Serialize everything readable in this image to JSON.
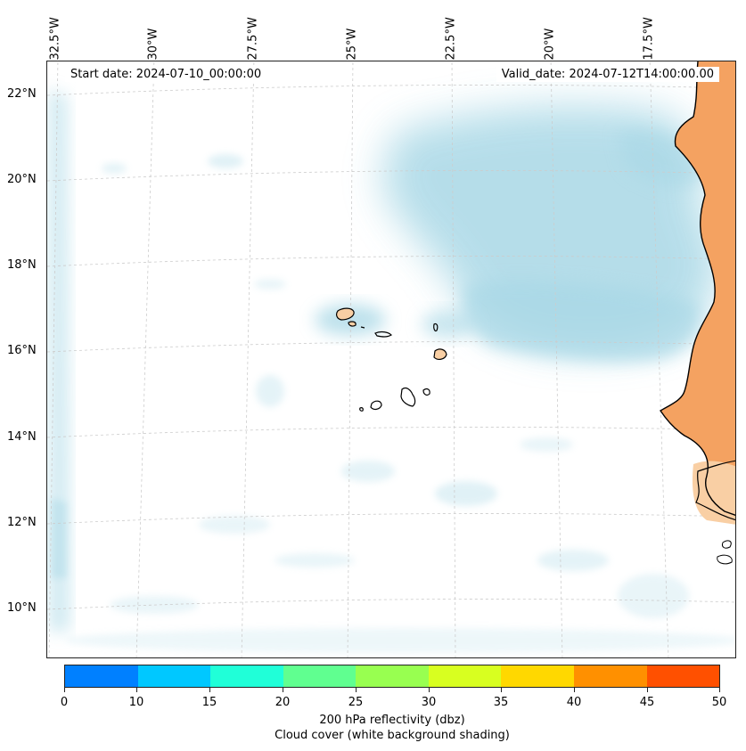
{
  "map": {
    "start_label": "Start date: 2024-07-10_00:00:00",
    "valid_label": "Valid_date: 2024-07-12T14:00:00.00",
    "lon_labels": [
      "32.5°W",
      "30°W",
      "27.5°W",
      "25°W",
      "22.5°W",
      "20°W",
      "17.5°W"
    ],
    "lat_labels": [
      "22°N",
      "20°N",
      "18°N",
      "16°N",
      "14°N",
      "12°N",
      "10°N"
    ],
    "colors": {
      "cloud": "#a9d8e6",
      "land_reflectivity": "#f4a261",
      "land_light": "#f9cfa4",
      "coastline": "#000000",
      "grid": "#cccccc"
    }
  },
  "colorbar": {
    "ticks": [
      "0",
      "10",
      "15",
      "20",
      "25",
      "30",
      "35",
      "40",
      "45",
      "50"
    ],
    "colors": [
      "#0080ff",
      "#00c8ff",
      "#20ffd8",
      "#60ff90",
      "#98ff50",
      "#d8ff20",
      "#ffd800",
      "#ff9000",
      "#ff5000"
    ],
    "label": "200 hPa reflectivity (dbz)",
    "sublabel": "Cloud cover (white background shading)"
  }
}
